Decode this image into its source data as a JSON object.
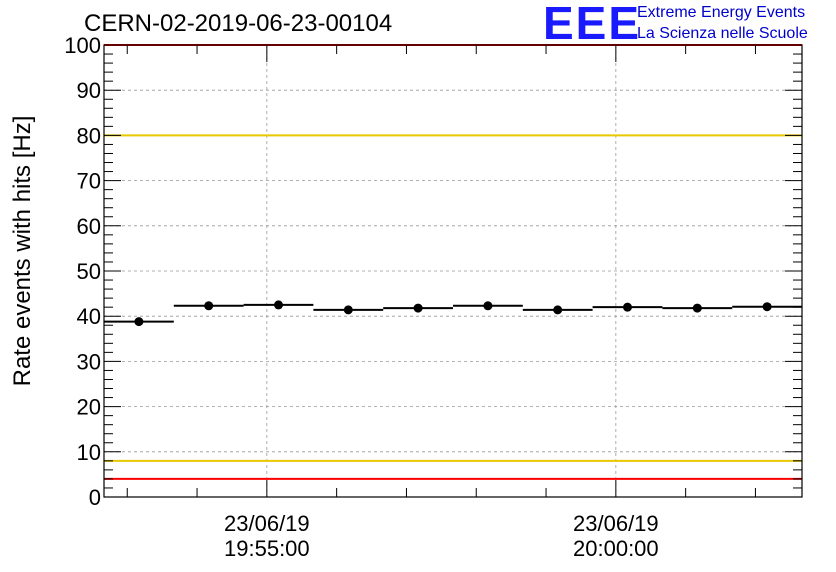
{
  "header": {
    "run_title": "CERN-02-2019-06-23-00104",
    "logo_text": "EEE",
    "logo_line1": "Extreme Energy Events",
    "logo_line2": "La Scienza nelle Scuole"
  },
  "colors": {
    "points": "#000000",
    "upper_limit_red": "#ff0000",
    "lower_limit_red": "#ff0000",
    "threshold_yellow": "#e8c800",
    "logo_blue": "#1a1aff"
  },
  "chart_data": {
    "type": "scatter",
    "title": "",
    "ylabel": "Rate events with hits [Hz]",
    "xlabel": "",
    "ylim": [
      0,
      100
    ],
    "yticks": [
      0,
      10,
      20,
      30,
      40,
      50,
      60,
      70,
      80,
      90,
      100
    ],
    "x_unit": "minutes",
    "xlim": [
      -2.333,
      7.667
    ],
    "x_ticks": [
      {
        "x": 0,
        "label_date": "23/06/19",
        "label_time": "19:55:00"
      },
      {
        "x": 5,
        "label_date": "23/06/19",
        "label_time": "20:00:00"
      }
    ],
    "grid": true,
    "series": [
      {
        "points": [
          {
            "x": -1.833,
            "y": 38.8
          },
          {
            "x": -0.833,
            "y": 42.3
          },
          {
            "x": 0.167,
            "y": 42.5
          },
          {
            "x": 1.167,
            "y": 41.4
          },
          {
            "x": 2.167,
            "y": 41.8
          },
          {
            "x": 3.167,
            "y": 42.3
          },
          {
            "x": 4.167,
            "y": 41.4
          },
          {
            "x": 5.167,
            "y": 42.0
          },
          {
            "x": 6.167,
            "y": 41.8
          },
          {
            "x": 7.167,
            "y": 42.1
          }
        ],
        "bin_width": 1.0
      }
    ],
    "reference_lines": [
      {
        "y": 100,
        "color": "red"
      },
      {
        "y": 80,
        "color": "yellow"
      },
      {
        "y": 8,
        "color": "yellow"
      },
      {
        "y": 4,
        "color": "red"
      }
    ]
  }
}
